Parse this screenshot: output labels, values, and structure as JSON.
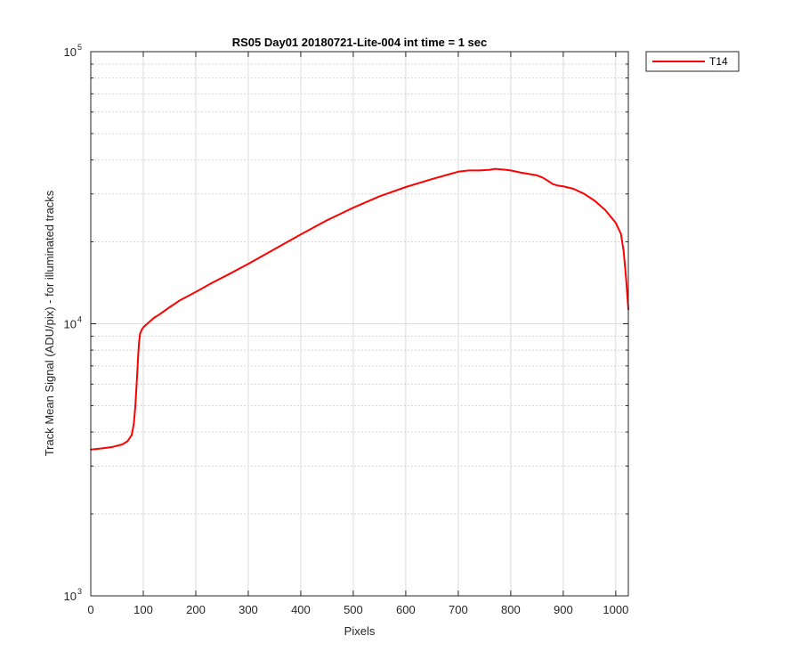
{
  "chart_data": {
    "type": "line",
    "title": "RS05 Day01 20180721-Lite-004 int time = 1 sec",
    "xlabel": "Pixels",
    "ylabel": "Track Mean Signal (ADU/pix) - for illuminated tracks",
    "xlim": [
      0,
      1024
    ],
    "ylim": [
      1000,
      100000
    ],
    "yscale": "log",
    "grid": true,
    "legend_location": "outside-top-right",
    "xticks": [
      0,
      100,
      200,
      300,
      400,
      500,
      600,
      700,
      800,
      900,
      1000
    ],
    "yticks": [
      {
        "value": 1000,
        "base": "10",
        "exp": "3"
      },
      {
        "value": 10000,
        "base": "10",
        "exp": "4"
      },
      {
        "value": 100000,
        "base": "10",
        "exp": "5"
      }
    ],
    "series": [
      {
        "name": "T14",
        "color": "#ff0000",
        "x": [
          0,
          20,
          40,
          60,
          70,
          78,
          82,
          85,
          88,
          90,
          92,
          94,
          97,
          100,
          110,
          120,
          130,
          150,
          170,
          200,
          230,
          260,
          300,
          350,
          400,
          450,
          500,
          550,
          600,
          650,
          700,
          720,
          740,
          760,
          770,
          790,
          800,
          820,
          850,
          860,
          870,
          880,
          890,
          900,
          920,
          940,
          960,
          980,
          1000,
          1010,
          1015,
          1020,
          1024
        ],
        "y": [
          3450,
          3480,
          3520,
          3600,
          3700,
          3900,
          4300,
          5000,
          6300,
          7500,
          8600,
          9200,
          9500,
          9700,
          10100,
          10500,
          10800,
          11500,
          12200,
          13100,
          14100,
          15100,
          16600,
          18800,
          21300,
          24000,
          26700,
          29400,
          31800,
          34000,
          36200,
          36600,
          36600,
          36800,
          37100,
          36800,
          36600,
          35900,
          35100,
          34500,
          33600,
          32600,
          32200,
          32000,
          31300,
          30000,
          28300,
          26200,
          23500,
          21400,
          18500,
          14500,
          11300
        ]
      }
    ]
  }
}
